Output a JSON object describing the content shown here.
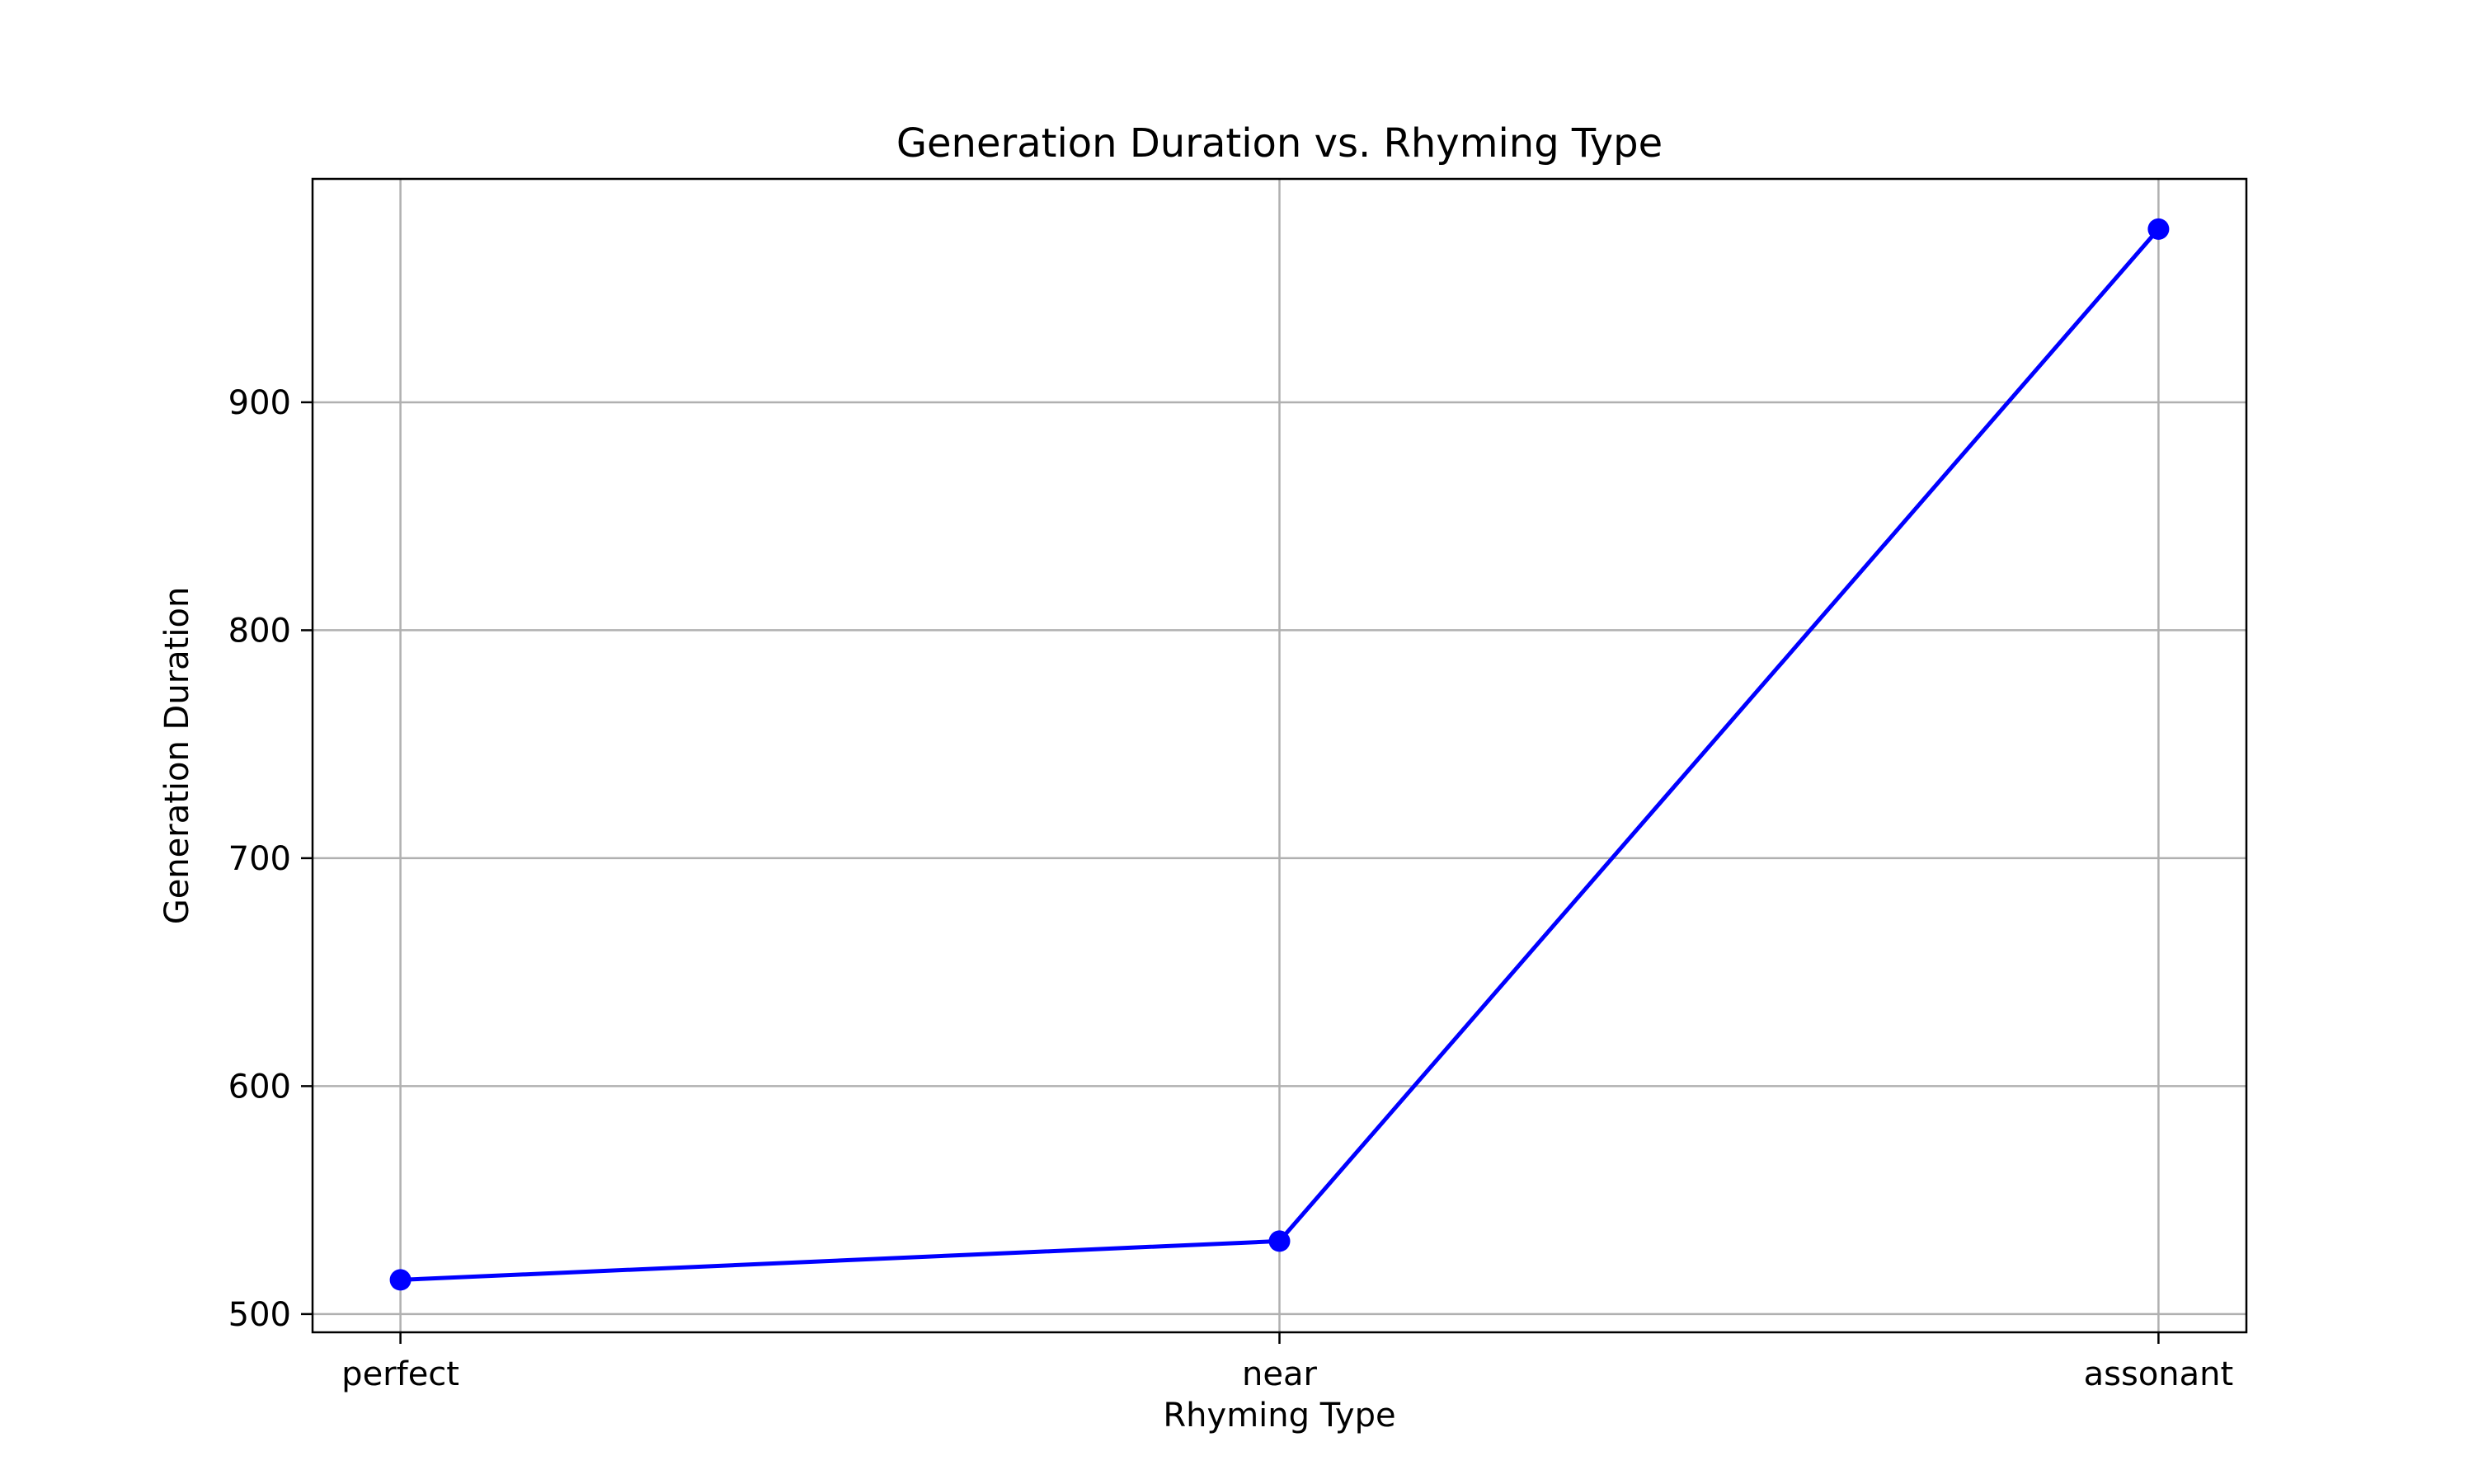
{
  "chart_data": {
    "type": "line",
    "title": "Generation Duration vs. Rhyming Type",
    "xlabel": "Rhyming Type",
    "ylabel": "Generation Duration",
    "categories": [
      "perfect",
      "near",
      "assonant"
    ],
    "series": [
      {
        "values": [
          515,
          532,
          976
        ],
        "color": "#0000ff",
        "marker": "circle"
      }
    ],
    "ylim": [
      492,
      998
    ],
    "yticks": [
      500,
      600,
      700,
      800,
      900
    ],
    "grid": true
  }
}
